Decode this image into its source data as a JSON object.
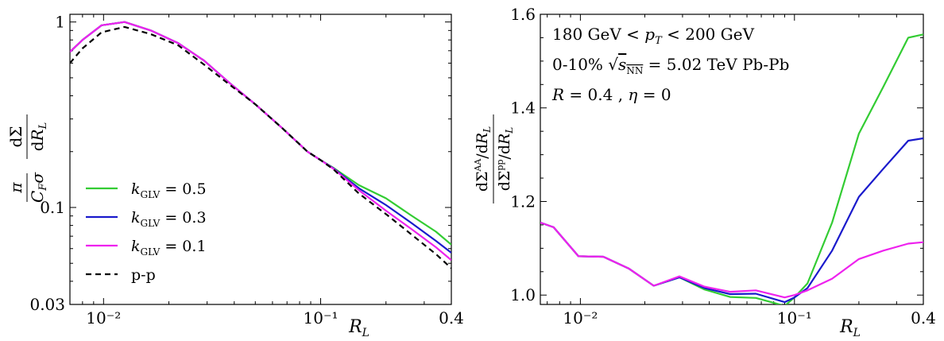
{
  "chart_data": [
    {
      "type": "line",
      "xscale": "log",
      "yscale": "log",
      "xlim": [
        0.007,
        0.4
      ],
      "ylim": [
        0.03,
        1.1
      ],
      "xticks": [
        {
          "value": 0.01,
          "label": "10⁻²"
        },
        {
          "value": 0.1,
          "label": "10⁻¹"
        },
        {
          "value": 0.4,
          "label": "0.4"
        }
      ],
      "yticks": [
        {
          "value": 1,
          "label": "1"
        },
        {
          "value": 0.1,
          "label": "0.1"
        },
        {
          "value": 0.03,
          "label": "0.03"
        }
      ],
      "xlabel": "R_L",
      "ylabel": "π/(C_F σ) dΣ/dR_L",
      "legend": {
        "position": "lower-left",
        "entries": [
          "k_GLV = 0.5",
          "k_GLV = 0.3",
          "k_GLV = 0.1",
          "p-p"
        ]
      },
      "series": [
        {
          "name": "k_GLV = 0.5",
          "color": "#33cc33",
          "style": "solid",
          "x": [
            0.007,
            0.008,
            0.0098,
            0.0125,
            0.0165,
            0.022,
            0.029,
            0.038,
            0.05,
            0.066,
            0.087,
            0.1,
            0.115,
            0.15,
            0.2,
            0.26,
            0.34,
            0.4
          ],
          "y": [
            0.69,
            0.8,
            0.96,
            1.0,
            0.9,
            0.77,
            0.62,
            0.47,
            0.36,
            0.27,
            0.2,
            0.18,
            0.163,
            0.132,
            0.112,
            0.091,
            0.074,
            0.063
          ]
        },
        {
          "name": "k_GLV = 0.3",
          "color": "#1a1acc",
          "style": "solid",
          "x": [
            0.007,
            0.008,
            0.0098,
            0.0125,
            0.0165,
            0.022,
            0.029,
            0.038,
            0.05,
            0.066,
            0.087,
            0.1,
            0.115,
            0.15,
            0.2,
            0.26,
            0.34,
            0.4
          ],
          "y": [
            0.69,
            0.8,
            0.96,
            1.0,
            0.9,
            0.77,
            0.62,
            0.47,
            0.36,
            0.27,
            0.2,
            0.18,
            0.162,
            0.127,
            0.103,
            0.083,
            0.066,
            0.057
          ]
        },
        {
          "name": "k_GLV = 0.1",
          "color": "#ee22ee",
          "style": "solid",
          "x": [
            0.007,
            0.008,
            0.0098,
            0.0125,
            0.0165,
            0.022,
            0.029,
            0.038,
            0.05,
            0.066,
            0.087,
            0.1,
            0.115,
            0.15,
            0.2,
            0.26,
            0.34,
            0.4
          ],
          "y": [
            0.69,
            0.8,
            0.96,
            1.0,
            0.9,
            0.77,
            0.62,
            0.47,
            0.36,
            0.27,
            0.2,
            0.18,
            0.161,
            0.124,
            0.096,
            0.077,
            0.061,
            0.052
          ]
        },
        {
          "name": "p-p",
          "color": "#000000",
          "style": "dashed",
          "x": [
            0.007,
            0.008,
            0.0098,
            0.0125,
            0.0165,
            0.022,
            0.029,
            0.038,
            0.05,
            0.066,
            0.087,
            0.1,
            0.115,
            0.15,
            0.2,
            0.26,
            0.34,
            0.4
          ],
          "y": [
            0.6,
            0.72,
            0.88,
            0.94,
            0.86,
            0.75,
            0.59,
            0.46,
            0.36,
            0.27,
            0.2,
            0.18,
            0.16,
            0.119,
            0.092,
            0.072,
            0.056,
            0.047
          ]
        }
      ]
    },
    {
      "type": "line",
      "xscale": "log",
      "yscale": "linear",
      "xlim": [
        0.0065,
        0.4
      ],
      "ylim": [
        0.98,
        1.6
      ],
      "xticks": [
        {
          "value": 0.01,
          "label": "10⁻²"
        },
        {
          "value": 0.1,
          "label": "10⁻¹"
        },
        {
          "value": 0.4,
          "label": "0.4"
        }
      ],
      "yticks": [
        {
          "value": 1.0,
          "label": "1.0"
        },
        {
          "value": 1.2,
          "label": "1.2"
        },
        {
          "value": 1.4,
          "label": "1.4"
        },
        {
          "value": 1.6,
          "label": "1.6"
        }
      ],
      "xlabel": "R_L",
      "ylabel": "(dΣ^AA/dR_L)/(dΣ^pp/dR_L)",
      "annotations": [
        "180 GeV < p_T < 200 GeV",
        "0-10% √s_NN = 5.02 TeV Pb-Pb",
        "R = 0.4 ,  η = 0"
      ],
      "series": [
        {
          "name": "k_GLV = 0.5",
          "color": "#33cc33",
          "style": "solid",
          "x": [
            0.0065,
            0.0075,
            0.0098,
            0.0128,
            0.0168,
            0.022,
            0.029,
            0.038,
            0.05,
            0.066,
            0.09,
            0.1,
            0.115,
            0.15,
            0.2,
            0.26,
            0.34,
            0.4
          ],
          "y": [
            1.155,
            1.145,
            1.083,
            1.082,
            1.057,
            1.02,
            1.038,
            1.012,
            0.996,
            0.994,
            0.977,
            0.995,
            1.025,
            1.155,
            1.345,
            1.445,
            1.55,
            1.557
          ]
        },
        {
          "name": "k_GLV = 0.3",
          "color": "#1a1acc",
          "style": "solid",
          "x": [
            0.0065,
            0.0075,
            0.0098,
            0.0128,
            0.0168,
            0.022,
            0.029,
            0.038,
            0.05,
            0.066,
            0.09,
            0.1,
            0.115,
            0.15,
            0.2,
            0.26,
            0.34,
            0.4
          ],
          "y": [
            1.155,
            1.145,
            1.083,
            1.082,
            1.057,
            1.02,
            1.038,
            1.015,
            1.002,
            1.003,
            0.985,
            0.995,
            1.015,
            1.095,
            1.21,
            1.27,
            1.33,
            1.335
          ]
        },
        {
          "name": "k_GLV = 0.1",
          "color": "#ee22ee",
          "style": "solid",
          "x": [
            0.0065,
            0.0075,
            0.0098,
            0.0128,
            0.0168,
            0.022,
            0.029,
            0.038,
            0.05,
            0.066,
            0.09,
            0.1,
            0.115,
            0.15,
            0.2,
            0.26,
            0.34,
            0.4
          ],
          "y": [
            1.155,
            1.145,
            1.083,
            1.082,
            1.057,
            1.02,
            1.04,
            1.018,
            1.007,
            1.01,
            0.995,
            1.0,
            1.01,
            1.035,
            1.077,
            1.095,
            1.11,
            1.113
          ]
        }
      ]
    }
  ]
}
